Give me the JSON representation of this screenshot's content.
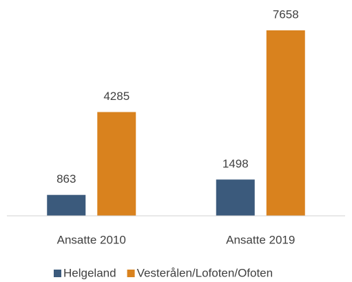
{
  "chart_data": {
    "type": "bar",
    "categories": [
      "Ansatte 2010",
      "Ansatte 2019"
    ],
    "series": [
      {
        "name": "Helgeland",
        "color": "#3b5a7c",
        "values": [
          863,
          1498
        ]
      },
      {
        "name": "Vesterålen/Lofoten/Ofoten",
        "color": "#d9821e",
        "values": [
          4285,
          7658
        ]
      }
    ],
    "ylim": [
      0,
      8000
    ],
    "legend": "bottom"
  }
}
